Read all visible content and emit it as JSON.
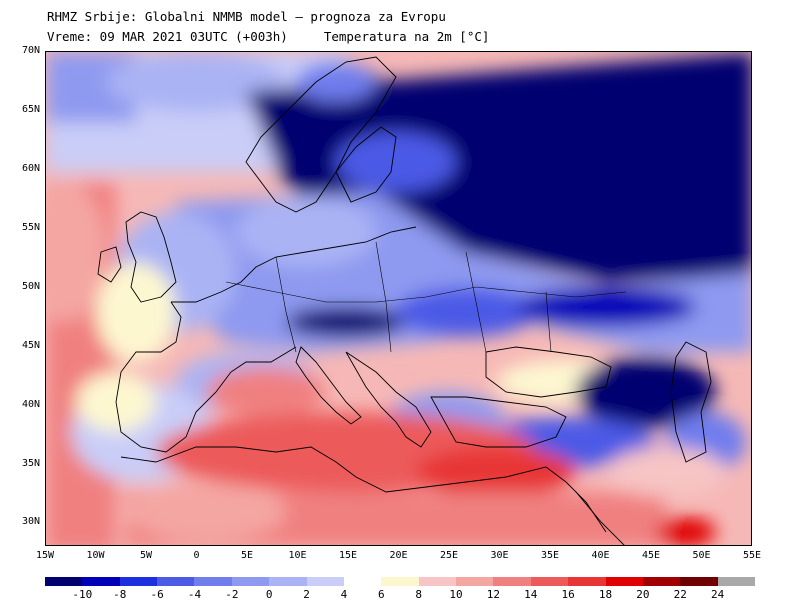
{
  "header": {
    "title": "RHMZ Srbije: Globalni NMMB model — prognoza za Evropu",
    "valid_time": "Vreme: 09 MAR 2021 03UTC (+003h)",
    "variable": "Temperatura na 2m [°C]"
  },
  "map": {
    "lat_labels": [
      "70N",
      "65N",
      "60N",
      "55N",
      "50N",
      "45N",
      "40N",
      "35N",
      "30N"
    ],
    "lon_labels": [
      "15W",
      "10W",
      "5W",
      "0",
      "5E",
      "10E",
      "15E",
      "20E",
      "25E",
      "30E",
      "35E",
      "40E",
      "45E",
      "50E",
      "55E"
    ],
    "extent": {
      "lon_min": -15,
      "lon_max": 55,
      "lat_min": 28,
      "lat_max": 70
    }
  },
  "legend": {
    "ticks": [
      "-10",
      "-8",
      "-6",
      "-4",
      "-2",
      "0",
      "2",
      "4",
      "6",
      "8",
      "10",
      "12",
      "14",
      "16",
      "18",
      "20",
      "22",
      "24"
    ],
    "colors": [
      "#000070",
      "#0000b8",
      "#1c30e0",
      "#4c5ae6",
      "#6f7ded",
      "#8e9af0",
      "#aab3f4",
      "#c9cdf8",
      "#ffffff",
      "#fdf7d0",
      "#f7c5c5",
      "#f4a6a3",
      "#f08080",
      "#ec5a5a",
      "#e83535",
      "#e00000",
      "#a00000",
      "#700000",
      "#a8a8a8"
    ]
  }
}
